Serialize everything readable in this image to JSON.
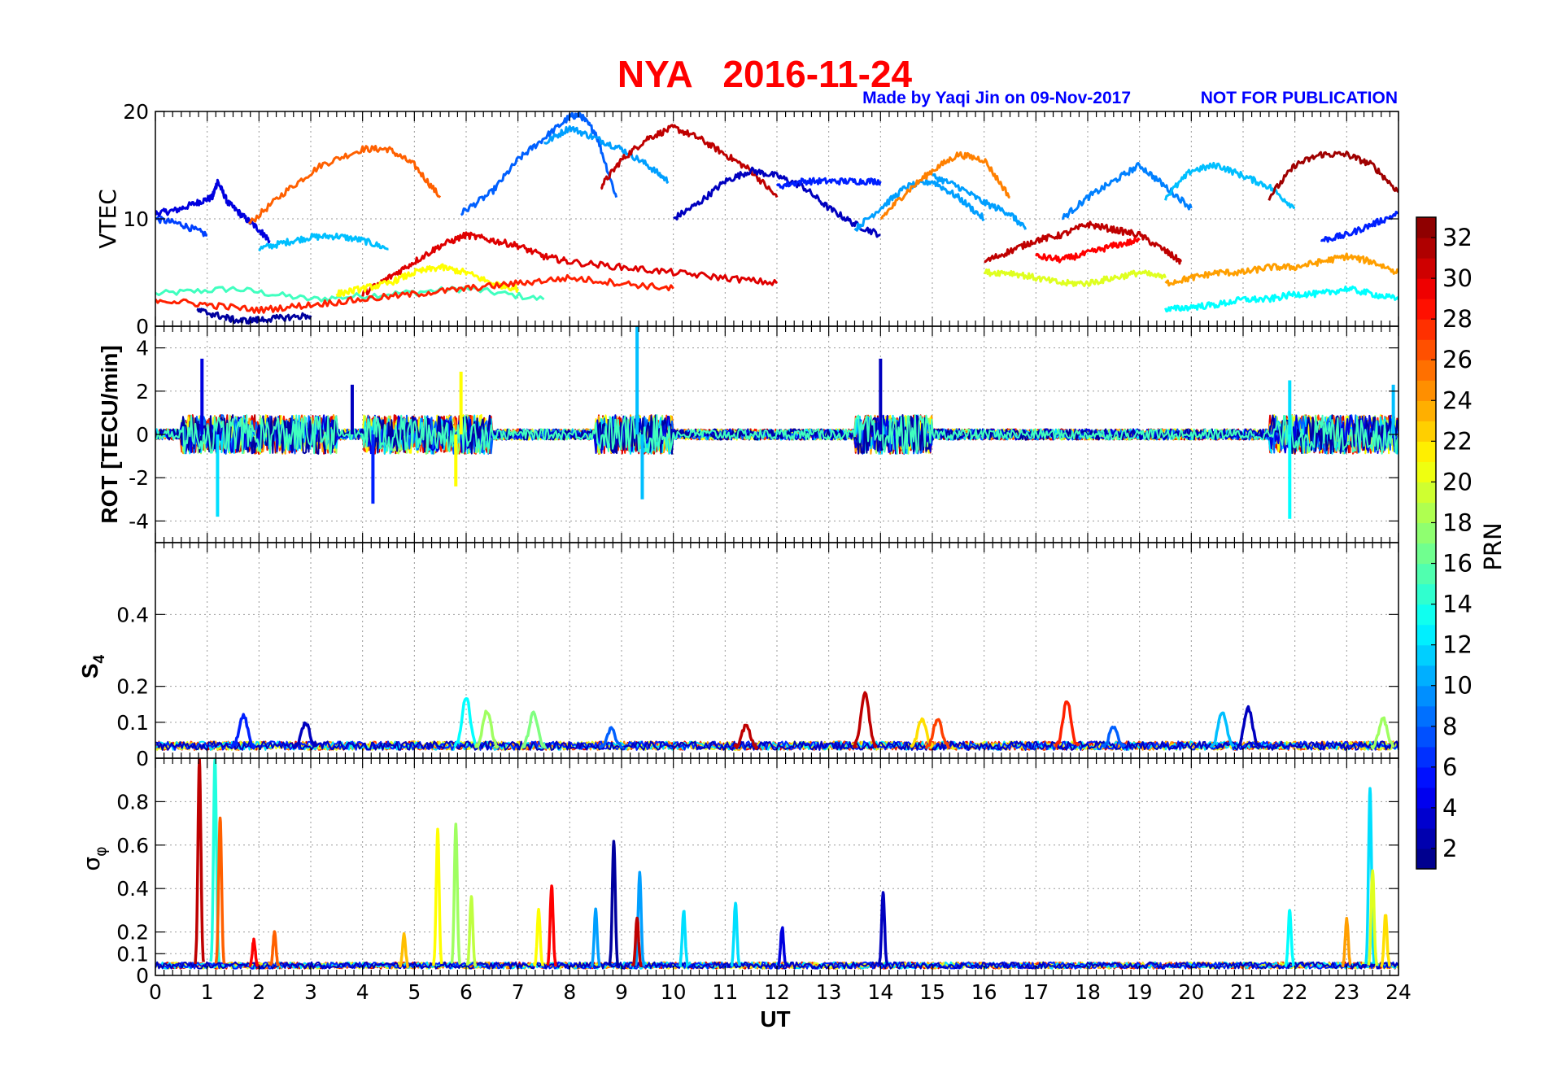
{
  "header": {
    "title": "NYA   2016-11-24",
    "credit": "Made by Yaqi Jin on 09-Nov-2017",
    "notice": "NOT FOR PUBLICATION"
  },
  "colors": {
    "title": "#ff0000",
    "credit": "#0000ff",
    "notice": "#0000ff"
  },
  "chart_data": {
    "type": "line",
    "x": {
      "label": "UT",
      "range": [
        0,
        24
      ],
      "ticks": [
        0,
        1,
        2,
        3,
        4,
        5,
        6,
        7,
        8,
        9,
        10,
        11,
        12,
        13,
        14,
        15,
        16,
        17,
        18,
        19,
        20,
        21,
        22,
        23,
        24
      ]
    },
    "colorbar": {
      "label": "PRN",
      "range": [
        1,
        33
      ],
      "ticks": [
        2,
        4,
        6,
        8,
        10,
        12,
        14,
        16,
        18,
        20,
        22,
        24,
        26,
        28,
        30,
        32
      ],
      "colormap": "jet"
    },
    "grid": true,
    "panels": [
      {
        "id": "vtec",
        "ylabel": "VTEC",
        "ylim": [
          0,
          20
        ],
        "yticks": [
          0,
          10,
          20
        ],
        "series": [
          {
            "prn": 15,
            "x": [
              0,
              1.5,
              3,
              4.5,
              6,
              7.5
            ],
            "y": [
              3,
              3.5,
              2.5,
              3,
              3.5,
              2.5
            ]
          },
          {
            "prn": 4,
            "x": [
              0,
              0.4,
              0.8,
              1.1,
              1.2,
              1.4,
              1.7,
              2.0,
              2.2
            ],
            "y": [
              10.5,
              10.8,
              11.5,
              12.0,
              13.5,
              11.5,
              10.2,
              9.0,
              8.0
            ]
          },
          {
            "prn": 7,
            "x": [
              0,
              0.5,
              1.0
            ],
            "y": [
              10.0,
              9.5,
              8.5
            ]
          },
          {
            "prn": 26,
            "x": [
              1.8,
              2.5,
              3.2,
              4.0,
              4.5,
              5.0,
              5.5
            ],
            "y": [
              9.5,
              12.5,
              15.0,
              16.5,
              16.5,
              15.0,
              12.0
            ]
          },
          {
            "prn": 11,
            "x": [
              2.0,
              2.5,
              3.0,
              3.5,
              4.0,
              4.5
            ],
            "y": [
              7.2,
              7.8,
              8.3,
              8.4,
              8.0,
              7.2
            ]
          },
          {
            "prn": 8,
            "x": [
              5.9,
              6.5,
              7.0,
              7.5,
              8.0,
              8.2,
              8.5,
              8.9
            ],
            "y": [
              10.5,
              12.5,
              15.5,
              17.5,
              19.5,
              19.7,
              18.0,
              12.0
            ]
          },
          {
            "prn": 10,
            "x": [
              7.5,
              8.0,
              8.5,
              9.0,
              9.5,
              9.9
            ],
            "y": [
              17.0,
              18.5,
              17.5,
              16.5,
              15.0,
              13.5
            ]
          },
          {
            "prn": 31,
            "x": [
              8.6,
              9.0,
              9.5,
              10.0,
              10.5,
              11.0,
              11.5,
              12.0
            ],
            "y": [
              13.0,
              15.5,
              17.5,
              18.5,
              17.5,
              16.0,
              14.5,
              12.0
            ]
          },
          {
            "prn": 3,
            "x": [
              10.0,
              10.5,
              11.0,
              11.5,
              12.0,
              12.5,
              13.0,
              13.5,
              14.0
            ],
            "y": [
              10.0,
              11.5,
              13.5,
              14.5,
              14.0,
              13.0,
              11.0,
              9.5,
              8.5
            ]
          },
          {
            "prn": 6,
            "x": [
              12.0,
              12.5,
              13.0,
              13.5,
              14.0
            ],
            "y": [
              13.0,
              13.5,
              13.5,
              13.5,
              13.5
            ]
          },
          {
            "prn": 10,
            "x": [
              13.5,
              14.0,
              14.5,
              15.0,
              15.5,
              16.0
            ],
            "y": [
              9.0,
              11.0,
              13.0,
              13.5,
              12.0,
              10.0
            ]
          },
          {
            "prn": 10,
            "x": [
              15.0,
              15.5,
              16.0,
              16.5,
              16.8
            ],
            "y": [
              14.0,
              13.0,
              11.5,
              10.5,
              9.0
            ]
          },
          {
            "prn": 25,
            "x": [
              14.0,
              14.5,
              15.0,
              15.5,
              16.0,
              16.5
            ],
            "y": [
              10.0,
              12.5,
              14.5,
              16.0,
              15.5,
              12.0
            ]
          },
          {
            "prn": 9,
            "x": [
              17.5,
              18.0,
              18.5,
              19.0,
              19.5,
              20.0
            ],
            "y": [
              10.0,
              12.0,
              13.5,
              15.0,
              13.0,
              11.0
            ]
          },
          {
            "prn": 11,
            "x": [
              19.5,
              20.0,
              20.5,
              21.0,
              21.5,
              22.0
            ],
            "y": [
              12.0,
              14.5,
              15.0,
              14.0,
              13.0,
              11.0
            ]
          },
          {
            "prn": 32,
            "x": [
              21.5,
              22.0,
              22.5,
              23.0,
              23.5,
              24.0
            ],
            "y": [
              12.0,
              15.0,
              16.0,
              16.0,
              15.0,
              12.5
            ]
          },
          {
            "prn": 6,
            "x": [
              22.5,
              23.0,
              23.5,
              24.0
            ],
            "y": [
              8.0,
              8.5,
              9.5,
              10.5
            ]
          },
          {
            "prn": 30,
            "x": [
              4.0,
              4.5,
              5.0,
              5.5,
              6.0,
              6.5,
              7.0,
              7.5,
              8.0,
              9.0,
              10.0,
              11.0,
              12.0
            ],
            "y": [
              3.0,
              4.5,
              6.0,
              7.5,
              8.5,
              8.0,
              7.5,
              6.5,
              6.0,
              5.5,
              5.0,
              4.5,
              4.0
            ]
          },
          {
            "prn": 31,
            "x": [
              16.0,
              16.5,
              17.0,
              17.5,
              18.0,
              18.5,
              19.0,
              19.5,
              19.8
            ],
            "y": [
              6.0,
              7.0,
              8.0,
              8.5,
              9.5,
              9.0,
              8.5,
              7.0,
              6.0
            ]
          },
          {
            "prn": 29,
            "x": [
              17.0,
              17.5,
              18.0,
              18.5,
              19.0
            ],
            "y": [
              6.5,
              6.2,
              6.8,
              7.5,
              8.0
            ]
          },
          {
            "prn": 24,
            "x": [
              19.5,
              20.0,
              20.5,
              21.0,
              21.5,
              22.0,
              22.5,
              23.0,
              23.5,
              24.0
            ],
            "y": [
              4.0,
              4.5,
              5.0,
              5.0,
              5.5,
              5.5,
              6.0,
              6.5,
              6.0,
              5.0
            ]
          },
          {
            "prn": 21,
            "x": [
              3.5,
              4.0,
              4.5,
              5.0,
              5.5,
              6.0,
              6.5,
              7.0
            ],
            "y": [
              3.0,
              3.5,
              4.0,
              5.0,
              5.5,
              5.0,
              4.0,
              3.5
            ]
          },
          {
            "prn": 20,
            "x": [
              16.0,
              16.5,
              17.0,
              17.5,
              18.0,
              18.5,
              19.0,
              19.5
            ],
            "y": [
              5.0,
              5.0,
              4.5,
              4.0,
              4.0,
              4.5,
              5.0,
              4.5
            ]
          },
          {
            "prn": 28,
            "x": [
              0,
              1.0,
              2.0,
              3.0,
              4.0,
              5.0,
              6.0,
              7.0,
              8.0,
              9.0,
              10.0
            ],
            "y": [
              2.5,
              2.0,
              1.5,
              2.0,
              2.5,
              3.0,
              3.5,
              4.0,
              4.5,
              4.0,
              3.5
            ]
          },
          {
            "prn": 2,
            "x": [
              0.8,
              1.2,
              1.6,
              2.0,
              2.5,
              3.0
            ],
            "y": [
              1.5,
              1.0,
              0.5,
              0.6,
              0.8,
              1.0
            ]
          },
          {
            "prn": 13,
            "x": [
              19.5,
              20.0,
              20.5,
              21.0,
              21.5,
              22.0,
              22.5,
              23.0,
              23.5,
              24.0
            ],
            "y": [
              1.5,
              1.8,
              2.0,
              2.5,
              2.5,
              3.0,
              3.0,
              3.5,
              3.0,
              2.5
            ]
          }
        ]
      },
      {
        "id": "rot",
        "ylabel": "ROT [TECU/min]",
        "ylim": [
          -5,
          5
        ],
        "yticks": [
          -4,
          -2,
          0,
          2,
          4
        ],
        "spikes": [
          {
            "prn": 4,
            "x": 0.9,
            "y": 3.5
          },
          {
            "prn": 12,
            "x": 1.2,
            "y": -3.8
          },
          {
            "prn": 6,
            "x": 4.2,
            "y": -3.2
          },
          {
            "prn": 3,
            "x": 3.8,
            "y": 2.3
          },
          {
            "prn": 21,
            "x": 5.9,
            "y": 2.9
          },
          {
            "prn": 21,
            "x": 5.8,
            "y": -2.4
          },
          {
            "prn": 11,
            "x": 9.3,
            "y": 5.0
          },
          {
            "prn": 11,
            "x": 9.4,
            "y": -3.0
          },
          {
            "prn": 3,
            "x": 14.0,
            "y": 3.5
          },
          {
            "prn": 13,
            "x": 21.9,
            "y": -3.9
          },
          {
            "prn": 12,
            "x": 21.9,
            "y": 2.5
          },
          {
            "prn": 11,
            "x": 23.9,
            "y": 2.3
          }
        ]
      },
      {
        "id": "s4",
        "ylabel": "S4",
        "ylim": [
          0,
          0.6
        ],
        "yticks": [
          0,
          0.1,
          0.2,
          0.4
        ],
        "peaks": [
          {
            "prn": 6,
            "x": 1.7,
            "y": 0.12
          },
          {
            "prn": 3,
            "x": 2.9,
            "y": 0.1
          },
          {
            "prn": 13,
            "x": 6.0,
            "y": 0.17
          },
          {
            "prn": 18,
            "x": 6.4,
            "y": 0.13
          },
          {
            "prn": 17,
            "x": 7.3,
            "y": 0.13
          },
          {
            "prn": 8,
            "x": 8.8,
            "y": 0.08
          },
          {
            "prn": 31,
            "x": 11.4,
            "y": 0.09
          },
          {
            "prn": 31,
            "x": 13.7,
            "y": 0.18
          },
          {
            "prn": 22,
            "x": 14.8,
            "y": 0.11
          },
          {
            "prn": 27,
            "x": 15.1,
            "y": 0.11
          },
          {
            "prn": 28,
            "x": 17.6,
            "y": 0.16
          },
          {
            "prn": 8,
            "x": 18.5,
            "y": 0.09
          },
          {
            "prn": 11,
            "x": 20.6,
            "y": 0.13
          },
          {
            "prn": 3,
            "x": 21.1,
            "y": 0.14
          },
          {
            "prn": 18,
            "x": 23.7,
            "y": 0.11
          }
        ]
      },
      {
        "id": "sigphi",
        "ylabel": "σφ",
        "ylim": [
          0,
          1
        ],
        "yticks": [
          0,
          0.1,
          0.2,
          0.4,
          0.6,
          0.8
        ],
        "peaks": [
          {
            "prn": 31,
            "x": 0.85,
            "y": 1.0
          },
          {
            "prn": 14,
            "x": 1.15,
            "y": 1.0
          },
          {
            "prn": 26,
            "x": 1.25,
            "y": 0.73
          },
          {
            "prn": 29,
            "x": 1.9,
            "y": 0.16
          },
          {
            "prn": 26,
            "x": 2.3,
            "y": 0.2
          },
          {
            "prn": 23,
            "x": 4.8,
            "y": 0.19
          },
          {
            "prn": 21,
            "x": 5.45,
            "y": 0.67
          },
          {
            "prn": 18,
            "x": 5.8,
            "y": 0.69
          },
          {
            "prn": 19,
            "x": 6.1,
            "y": 0.36
          },
          {
            "prn": 29,
            "x": 7.65,
            "y": 0.41
          },
          {
            "prn": 21,
            "x": 7.4,
            "y": 0.3
          },
          {
            "prn": 10,
            "x": 8.5,
            "y": 0.3
          },
          {
            "prn": 2,
            "x": 8.85,
            "y": 0.62
          },
          {
            "prn": 10,
            "x": 9.35,
            "y": 0.47
          },
          {
            "prn": 31,
            "x": 9.3,
            "y": 0.27
          },
          {
            "prn": 12,
            "x": 10.2,
            "y": 0.3
          },
          {
            "prn": 12,
            "x": 11.2,
            "y": 0.33
          },
          {
            "prn": 4,
            "x": 12.1,
            "y": 0.22
          },
          {
            "prn": 3,
            "x": 14.05,
            "y": 0.38
          },
          {
            "prn": 13,
            "x": 21.9,
            "y": 0.3
          },
          {
            "prn": 24,
            "x": 23.0,
            "y": 0.26
          },
          {
            "prn": 12,
            "x": 23.45,
            "y": 0.86
          },
          {
            "prn": 20,
            "x": 23.5,
            "y": 0.48
          },
          {
            "prn": 22,
            "x": 23.75,
            "y": 0.28
          }
        ]
      }
    ]
  }
}
